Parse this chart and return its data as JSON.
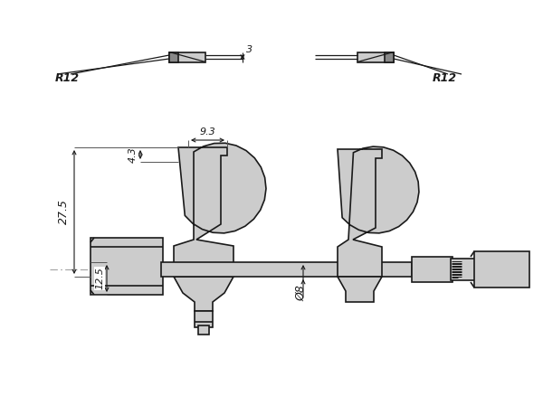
{
  "bg_color": "#ffffff",
  "line_color": "#1a1a1a",
  "fill_color": "#cccccc",
  "fill_dark": "#999999",
  "dim_3": "3",
  "dim_R12_left": "R12",
  "dim_R12_right": "R12",
  "dim_9_3": "9.3",
  "dim_4_3": "4.3",
  "dim_27_5": "27.5",
  "dim_12_5": "12.5",
  "dim_8": "Ø8",
  "figsize": [
    6.0,
    4.38
  ],
  "dpi": 100
}
